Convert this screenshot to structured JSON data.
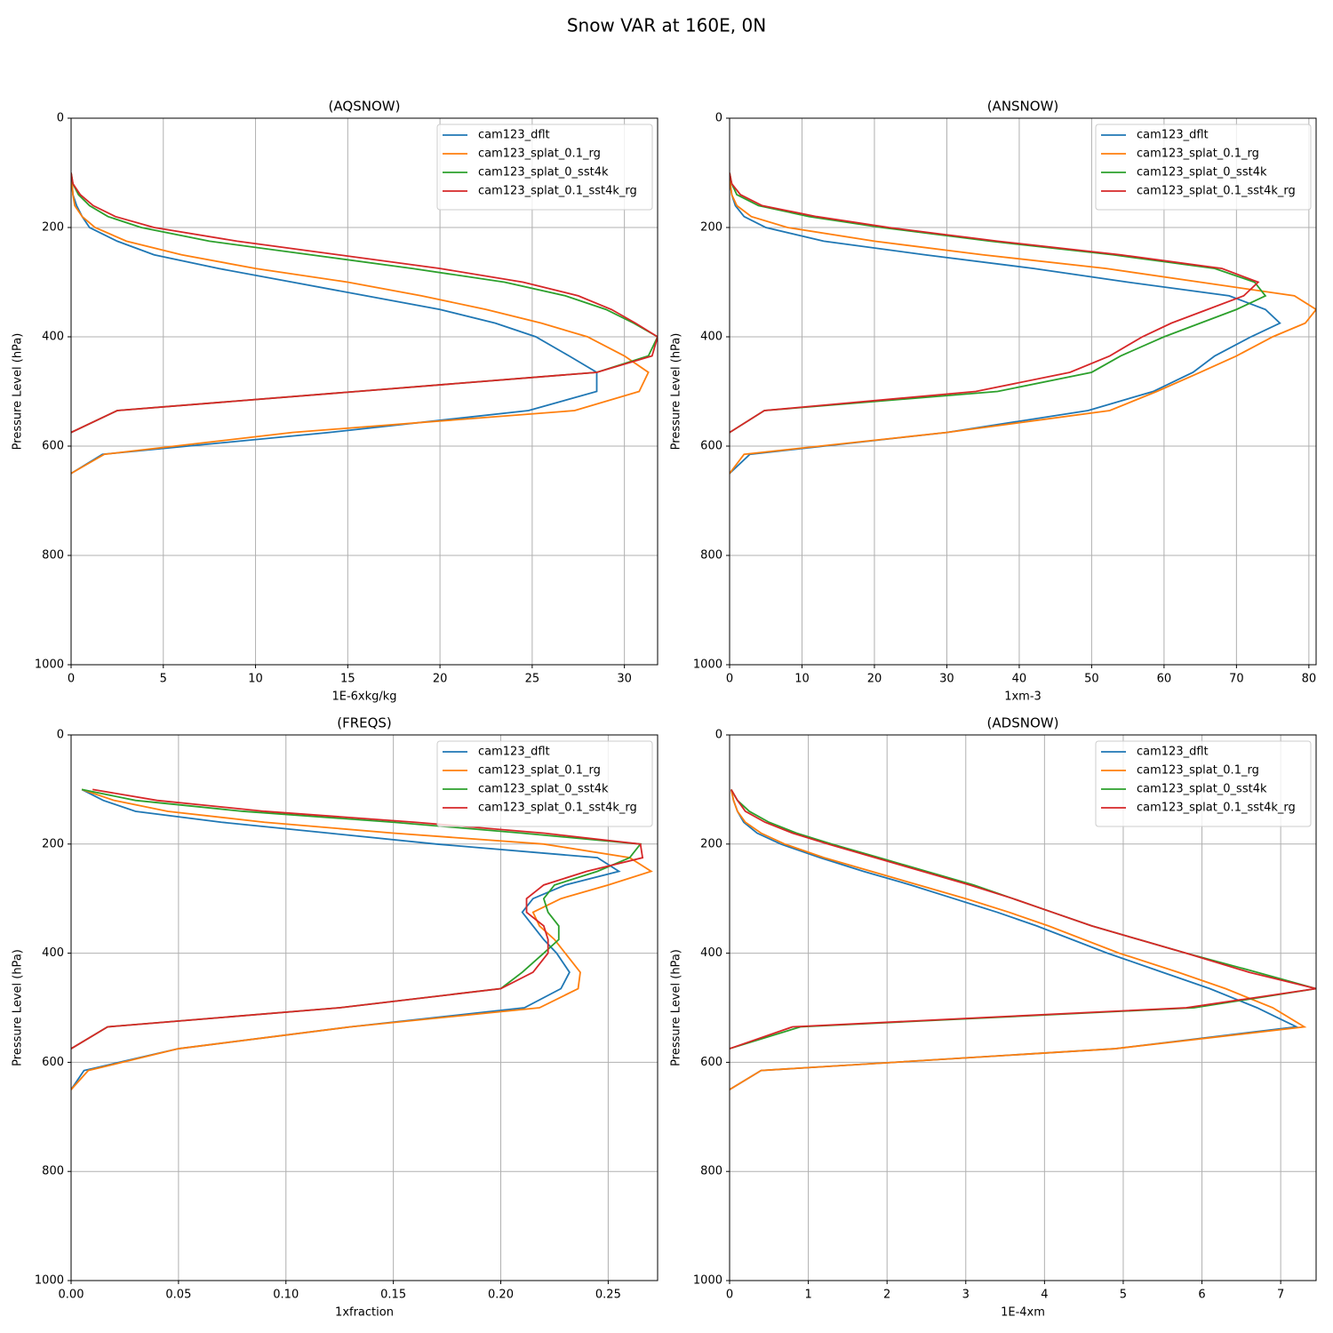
{
  "title": "Snow VAR at 160E, 0N",
  "chart_data": [
    {
      "type": "line",
      "title": "(AQSNOW)",
      "x_label": "1E-6xkg/kg",
      "y_label": "Pressure Level (hPa)",
      "xlim": [
        0,
        31.8
      ],
      "xticks": [
        0,
        5,
        10,
        15,
        20,
        25,
        30
      ],
      "ylim": [
        1000,
        0
      ],
      "yticks": [
        0,
        200,
        400,
        600,
        800,
        1000
      ],
      "grid": true,
      "legend": "upper right",
      "y": [
        100,
        120,
        140,
        160,
        180,
        200,
        225,
        250,
        275,
        300,
        325,
        350,
        375,
        400,
        435,
        465,
        500,
        535,
        575,
        615,
        650
      ],
      "series": [
        {
          "name": "cam123_dflt",
          "color": "#1f77b4",
          "values": [
            0,
            0.05,
            0.1,
            0.3,
            0.6,
            1.0,
            2.5,
            4.5,
            8,
            12,
            16,
            20,
            23,
            25.2,
            27,
            28.5,
            28.5,
            24.8,
            14,
            1.7,
            0
          ]
        },
        {
          "name": "cam123_splat_0.1_rg",
          "color": "#ff7f0e",
          "values": [
            0,
            0.05,
            0.1,
            0.2,
            0.6,
            1.3,
            3,
            6,
            10,
            15,
            19,
            22.5,
            25.5,
            28,
            30,
            31.3,
            30.8,
            27.3,
            12,
            1.8,
            0
          ]
        },
        {
          "name": "cam123_splat_0_sst4k",
          "color": "#2ca02c",
          "values": [
            0,
            0.1,
            0.4,
            1,
            2,
            3.8,
            7.5,
            13,
            18.5,
            23.5,
            26.8,
            29,
            30.5,
            31.8,
            31.3,
            28.5,
            15.5,
            2.5,
            0,
            null,
            null
          ]
        },
        {
          "name": "cam123_splat_0.1_sst4k_rg",
          "color": "#d62728",
          "values": [
            0,
            0.1,
            0.5,
            1.2,
            2.4,
            4.5,
            9,
            14.5,
            20,
            24.5,
            27.5,
            29.3,
            30.6,
            31.8,
            31.5,
            28.5,
            15.5,
            2.5,
            0,
            null,
            null
          ]
        }
      ]
    },
    {
      "type": "line",
      "title": "(ANSNOW)",
      "x_label": "1xm-3",
      "y_label": "Pressure Level (hPa)",
      "xlim": [
        0,
        81
      ],
      "xticks": [
        0,
        10,
        20,
        30,
        40,
        50,
        60,
        70,
        80
      ],
      "ylim": [
        1000,
        0
      ],
      "yticks": [
        0,
        200,
        400,
        600,
        800,
        1000
      ],
      "grid": true,
      "legend": "upper right",
      "y": [
        100,
        120,
        140,
        160,
        180,
        200,
        225,
        250,
        275,
        300,
        325,
        350,
        375,
        400,
        435,
        465,
        500,
        535,
        575,
        615,
        650
      ],
      "series": [
        {
          "name": "cam123_dflt",
          "color": "#1f77b4",
          "values": [
            0,
            0.1,
            0.3,
            0.8,
            2,
            5,
            13,
            27,
            42,
            55,
            69,
            74,
            76,
            72,
            67,
            64,
            58.5,
            49.5,
            30,
            2.8,
            0
          ]
        },
        {
          "name": "cam123_splat_0.1_rg",
          "color": "#ff7f0e",
          "values": [
            0,
            0.1,
            0.3,
            1,
            3,
            8,
            20,
            35,
            52,
            65,
            78,
            81,
            79.5,
            75,
            70,
            65,
            59,
            52.5,
            30,
            2,
            0
          ]
        },
        {
          "name": "cam123_splat_0_sst4k",
          "color": "#2ca02c",
          "values": [
            0,
            0.3,
            1,
            4,
            11,
            21,
            36,
            53,
            67,
            72.5,
            74,
            70,
            65,
            60,
            54,
            50,
            37,
            4.8,
            0,
            null,
            null
          ]
        },
        {
          "name": "cam123_splat_0.1_sst4k_rg",
          "color": "#d62728",
          "values": [
            0,
            0.3,
            1.5,
            4.5,
            12,
            22,
            37,
            54,
            68,
            73,
            71,
            66,
            61,
            57,
            52.5,
            47,
            34,
            4.8,
            0,
            null,
            null
          ]
        }
      ]
    },
    {
      "type": "line",
      "title": "(FREQS)",
      "x_label": "1xfraction",
      "y_label": "Pressure Level (hPa)",
      "xlim": [
        0,
        0.273
      ],
      "xticks": [
        {
          "value": 0,
          "label": "0.00"
        },
        0.05,
        {
          "value": 0.1,
          "label": "0.10"
        },
        0.15,
        {
          "value": 0.2,
          "label": "0.20"
        },
        0.25
      ],
      "ylim": [
        1000,
        0
      ],
      "yticks": [
        0,
        200,
        400,
        600,
        800,
        1000
      ],
      "grid": true,
      "legend": "upper right",
      "y": [
        100,
        120,
        140,
        160,
        180,
        200,
        225,
        250,
        275,
        300,
        325,
        350,
        375,
        400,
        435,
        465,
        500,
        535,
        575,
        615,
        650
      ],
      "series": [
        {
          "name": "cam123_dflt",
          "color": "#1f77b4",
          "values": [
            0.005,
            0.015,
            0.03,
            0.07,
            0.12,
            0.17,
            0.245,
            0.255,
            0.23,
            0.215,
            0.21,
            0.215,
            0.22,
            0.226,
            0.232,
            0.228,
            0.211,
            0.13,
            0.05,
            0.006,
            0
          ]
        },
        {
          "name": "cam123_splat_0.1_rg",
          "color": "#ff7f0e",
          "values": [
            0.005,
            0.02,
            0.045,
            0.09,
            0.15,
            0.22,
            0.26,
            0.27,
            0.25,
            0.228,
            0.215,
            0.218,
            0.225,
            0.23,
            0.237,
            0.236,
            0.218,
            0.13,
            0.05,
            0.008,
            0
          ]
        },
        {
          "name": "cam123_splat_0_sst4k",
          "color": "#2ca02c",
          "values": [
            0.005,
            0.03,
            0.08,
            0.15,
            0.21,
            0.265,
            0.26,
            0.245,
            0.225,
            0.22,
            0.222,
            0.227,
            0.227,
            0.22,
            0.21,
            0.2,
            0.125,
            0.017,
            0,
            null,
            null
          ]
        },
        {
          "name": "cam123_splat_0.1_sst4k_rg",
          "color": "#d62728",
          "values": [
            0.01,
            0.04,
            0.09,
            0.16,
            0.22,
            0.265,
            0.266,
            0.24,
            0.22,
            0.212,
            0.212,
            0.22,
            0.222,
            0.222,
            0.215,
            0.2,
            0.125,
            0.017,
            0,
            null,
            null
          ]
        }
      ]
    },
    {
      "type": "line",
      "title": "(ADSNOW)",
      "x_label": "1E-4xm",
      "y_label": "Pressure Level (hPa)",
      "xlim": [
        0,
        7.45
      ],
      "xticks": [
        0,
        1,
        2,
        3,
        4,
        5,
        6,
        7
      ],
      "ylim": [
        1000,
        0
      ],
      "yticks": [
        0,
        200,
        400,
        600,
        800,
        1000
      ],
      "grid": true,
      "legend": "upper right",
      "y": [
        100,
        120,
        140,
        160,
        180,
        200,
        225,
        250,
        275,
        300,
        325,
        350,
        375,
        400,
        435,
        465,
        500,
        535,
        575,
        615,
        650
      ],
      "series": [
        {
          "name": "cam123_dflt",
          "color": "#1f77b4",
          "values": [
            0.02,
            0.05,
            0.1,
            0.18,
            0.35,
            0.65,
            1.15,
            1.7,
            2.3,
            2.85,
            3.4,
            3.9,
            4.35,
            4.8,
            5.5,
            6.1,
            6.7,
            7.2,
            4.9,
            0.4,
            0
          ]
        },
        {
          "name": "cam123_splat_0.1_rg",
          "color": "#ff7f0e",
          "values": [
            0.02,
            0.05,
            0.1,
            0.2,
            0.4,
            0.7,
            1.2,
            1.8,
            2.4,
            3,
            3.55,
            4.05,
            4.5,
            4.95,
            5.7,
            6.3,
            6.9,
            7.3,
            4.9,
            0.4,
            0
          ]
        },
        {
          "name": "cam123_splat_0_sst4k",
          "color": "#2ca02c",
          "values": [
            0.02,
            0.1,
            0.25,
            0.5,
            0.85,
            1.3,
            1.9,
            2.5,
            3.1,
            3.6,
            4.1,
            4.6,
            5.2,
            5.8,
            6.7,
            7.45,
            5.9,
            0.9,
            0,
            null,
            null
          ]
        },
        {
          "name": "cam123_splat_0.1_sst4k_rg",
          "color": "#d62728",
          "values": [
            0.02,
            0.1,
            0.2,
            0.45,
            0.8,
            1.25,
            1.85,
            2.45,
            3.05,
            3.6,
            4.1,
            4.6,
            5.2,
            5.8,
            6.6,
            7.45,
            5.8,
            0.8,
            0,
            null,
            null
          ]
        }
      ]
    }
  ]
}
